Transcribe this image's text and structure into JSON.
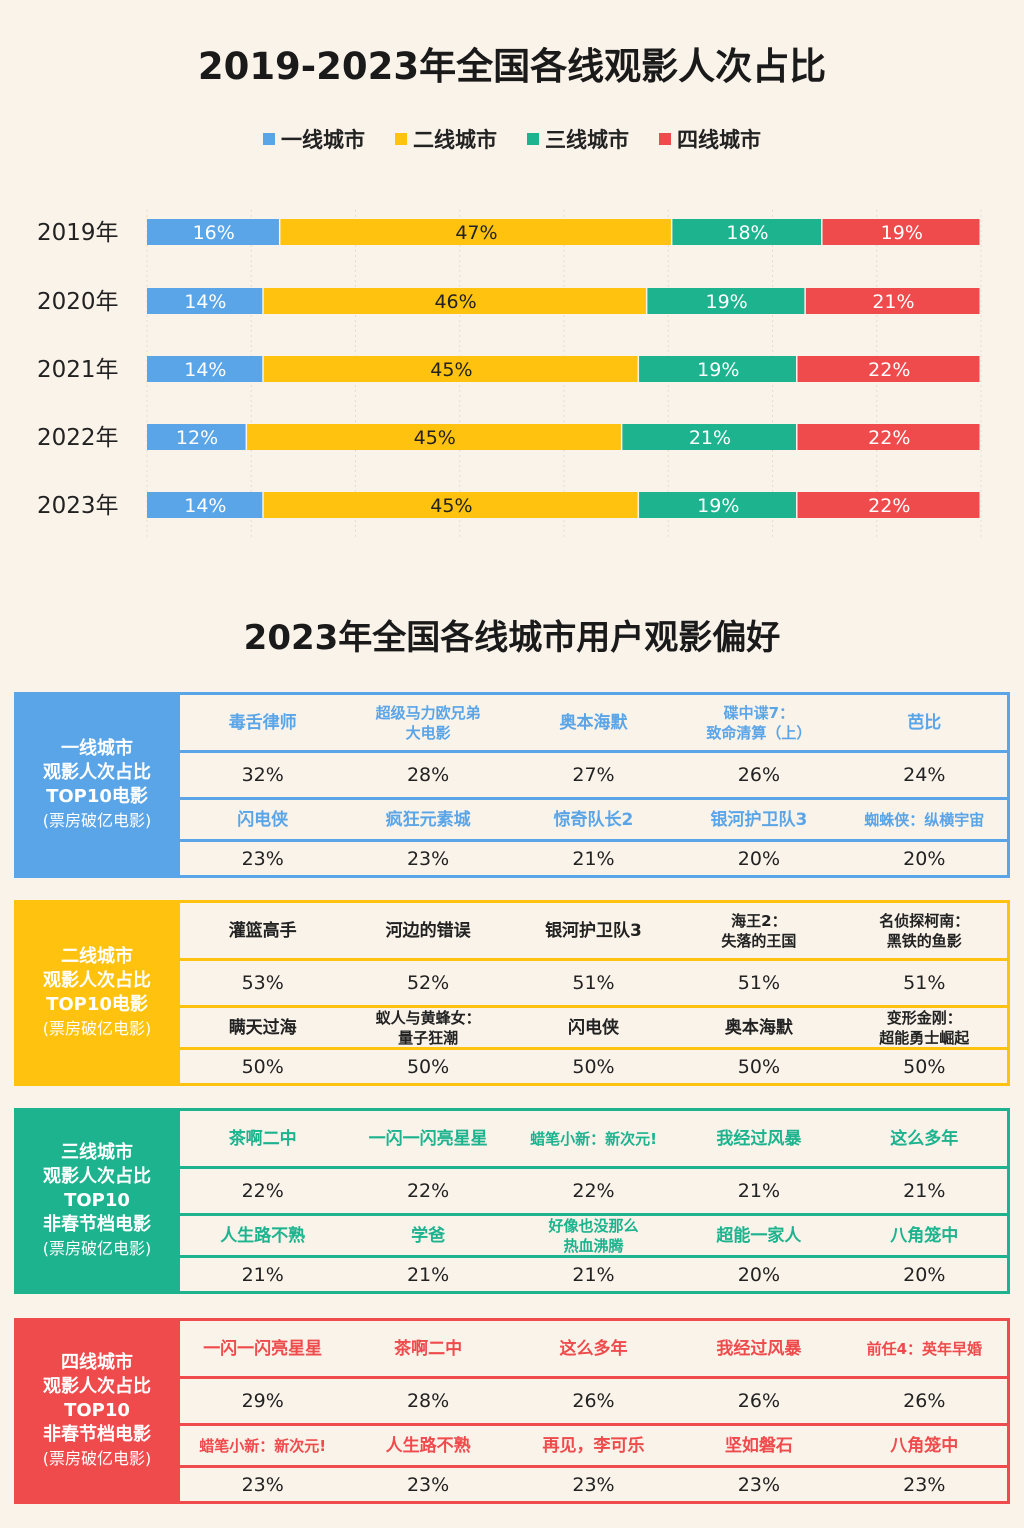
{
  "chart_data": {
    "type": "bar",
    "orientation": "horizontal-stacked-100",
    "title": "2019-2023年全国各线观影人次占比",
    "legend_position": "top",
    "categories": [
      "2019年",
      "2020年",
      "2021年",
      "2022年",
      "2023年"
    ],
    "series": [
      {
        "name": "一线城市",
        "color": "#5AA5E8",
        "values": [
          16,
          14,
          14,
          12,
          14
        ]
      },
      {
        "name": "二线城市",
        "color": "#FFC20E",
        "values": [
          47,
          46,
          45,
          45,
          45
        ]
      },
      {
        "name": "三线城市",
        "color": "#1CB38E",
        "values": [
          18,
          19,
          19,
          21,
          19
        ]
      },
      {
        "name": "四线城市",
        "color": "#EF4A4C",
        "values": [
          19,
          21,
          22,
          22,
          22
        ]
      }
    ],
    "unit": "%"
  },
  "section2_title": "2023年全国各线城市用户观影偏好",
  "tables": [
    {
      "color": "#5AA5E8",
      "name_color": "#5AA5E8",
      "label": [
        "一线城市",
        "观影人次占比",
        "TOP10电影"
      ],
      "sub": "(票房破亿电影)",
      "rows": [
        [
          "毒舌律师",
          "超级马力欧兄弟\n大电影",
          "奥本海默",
          "碟中谍7：\n致命清算（上）",
          "芭比"
        ],
        [
          "32%",
          "28%",
          "27%",
          "26%",
          "24%"
        ],
        [
          "闪电侠",
          "疯狂元素城",
          "惊奇队长2",
          "银河护卫队3",
          "蜘蛛侠：纵横宇宙"
        ],
        [
          "23%",
          "23%",
          "21%",
          "20%",
          "20%"
        ]
      ]
    },
    {
      "color": "#FFC20E",
      "name_color": "#222222",
      "label": [
        "二线城市",
        "观影人次占比",
        "TOP10电影"
      ],
      "sub": "(票房破亿电影)",
      "rows": [
        [
          "灌篮高手",
          "河边的错误",
          "银河护卫队3",
          "海王2：\n失落的王国",
          "名侦探柯南：\n黑铁的鱼影"
        ],
        [
          "53%",
          "52%",
          "51%",
          "51%",
          "51%"
        ],
        [
          "瞒天过海",
          "蚁人与黄蜂女：\n量子狂潮",
          "闪电侠",
          "奥本海默",
          "变形金刚：\n超能勇士崛起"
        ],
        [
          "50%",
          "50%",
          "50%",
          "50%",
          "50%"
        ]
      ]
    },
    {
      "color": "#1CB38E",
      "name_color": "#1CB38E",
      "label": [
        "三线城市",
        "观影人次占比",
        "TOP10",
        "非春节档电影"
      ],
      "sub": "(票房破亿电影)",
      "rows": [
        [
          "茶啊二中",
          "一闪一闪亮星星",
          "蜡笔小新：新次元!",
          "我经过风暴",
          "这么多年"
        ],
        [
          "22%",
          "22%",
          "22%",
          "21%",
          "21%"
        ],
        [
          "人生路不熟",
          "学爸",
          "好像也没那么\n热血沸腾",
          "超能一家人",
          "八角笼中"
        ],
        [
          "21%",
          "21%",
          "21%",
          "20%",
          "20%"
        ]
      ]
    },
    {
      "color": "#EF4A4C",
      "name_color": "#EF4A4C",
      "label": [
        "四线城市",
        "观影人次占比",
        "TOP10",
        "非春节档电影"
      ],
      "sub": "(票房破亿电影)",
      "rows": [
        [
          "一闪一闪亮星星",
          "茶啊二中",
          "这么多年",
          "我经过风暴",
          "前任4：英年早婚"
        ],
        [
          "29%",
          "28%",
          "26%",
          "26%",
          "26%"
        ],
        [
          "蜡笔小新：新次元!",
          "人生路不熟",
          "再见，李可乐",
          "坚如磐石",
          "八角笼中"
        ],
        [
          "23%",
          "23%",
          "23%",
          "23%",
          "23%"
        ]
      ]
    }
  ]
}
